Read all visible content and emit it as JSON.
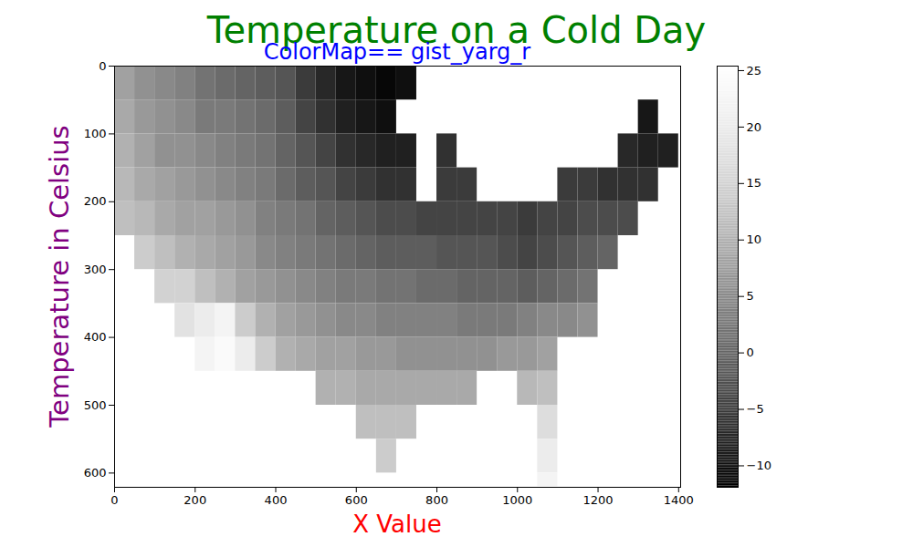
{
  "chart_data": {
    "type": "heatmap",
    "title": "Temperature on a Cold Day",
    "subtitle": "ColorMap== gist_yarg_r",
    "x_label": "X Value",
    "y_label": "Temperature in Celsius",
    "xlim": [
      0,
      1405
    ],
    "ylim": [
      621,
      0
    ],
    "xticks": [
      0,
      200,
      400,
      600,
      800,
      1000,
      1200,
      1400
    ],
    "yticks": [
      0,
      100,
      200,
      300,
      400,
      500,
      600
    ],
    "x_bins": [
      0,
      50,
      100,
      150,
      200,
      250,
      300,
      350,
      400,
      450,
      500,
      550,
      600,
      650,
      700,
      750,
      800,
      850,
      900,
      950,
      1000,
      1050,
      1100,
      1150,
      1200,
      1250,
      1300,
      1350,
      1400
    ],
    "y_bins": [
      0,
      50,
      100,
      150,
      200,
      250,
      300,
      350,
      400,
      450,
      500,
      550,
      600,
      620
    ],
    "cells": [
      [
        8,
        6,
        5,
        4,
        2,
        1,
        0,
        -1,
        -2,
        -5,
        -7,
        -9,
        -10,
        -11,
        -10,
        null,
        null,
        null,
        null,
        null,
        null,
        null,
        null,
        null,
        null,
        null,
        null,
        null
      ],
      [
        9,
        7,
        6,
        5,
        3,
        3,
        2,
        1,
        -1,
        -4,
        -6,
        -8,
        -9,
        -10,
        null,
        null,
        null,
        null,
        null,
        null,
        null,
        null,
        null,
        null,
        null,
        null,
        -9,
        null
      ],
      [
        10,
        8,
        6,
        6,
        5,
        4,
        3,
        2,
        0,
        -2,
        -4,
        -6,
        -7,
        -8,
        -8,
        null,
        -6,
        null,
        null,
        null,
        null,
        null,
        null,
        null,
        null,
        -7,
        -8,
        -8
      ],
      [
        11,
        9,
        8,
        7,
        6,
        5,
        4,
        3,
        1,
        -1,
        -2,
        -4,
        -5,
        -6,
        -6,
        null,
        -5,
        -5,
        null,
        null,
        null,
        null,
        -5,
        -5,
        -6,
        -6,
        -6,
        null
      ],
      [
        12,
        11,
        9,
        8,
        8,
        7,
        6,
        4,
        3,
        2,
        0,
        -1,
        -2,
        -3,
        -3,
        -4,
        -4,
        -4,
        -4,
        -4,
        -5,
        -4,
        -4,
        -3,
        -3,
        -3,
        null,
        null
      ],
      [
        null,
        14,
        12,
        10,
        9,
        8,
        7,
        5,
        4,
        3,
        2,
        1,
        0,
        -1,
        -1,
        -1,
        -2,
        -2,
        -2,
        -3,
        -4,
        -3,
        -2,
        -1,
        0,
        null,
        null,
        null
      ],
      [
        null,
        null,
        15,
        15,
        12,
        10,
        8,
        7,
        6,
        5,
        4,
        3,
        3,
        2,
        2,
        1,
        1,
        0,
        0,
        0,
        -1,
        0,
        1,
        2,
        null,
        null,
        null,
        null
      ],
      [
        null,
        null,
        null,
        18,
        20,
        22,
        14,
        10,
        8,
        7,
        6,
        5,
        5,
        4,
        4,
        4,
        4,
        3,
        3,
        3,
        4,
        5,
        5,
        6,
        null,
        null,
        null,
        null
      ],
      [
        null,
        null,
        null,
        null,
        22,
        24,
        20,
        14,
        10,
        9,
        8,
        8,
        7,
        7,
        6,
        6,
        6,
        6,
        6,
        7,
        7,
        8,
        null,
        null,
        null,
        null,
        null,
        null
      ],
      [
        null,
        null,
        null,
        null,
        null,
        null,
        null,
        null,
        null,
        null,
        10,
        10,
        9,
        9,
        9,
        9,
        9,
        9,
        null,
        null,
        11,
        12,
        null,
        null,
        null,
        null,
        null,
        null
      ],
      [
        null,
        null,
        null,
        null,
        null,
        null,
        null,
        null,
        null,
        null,
        null,
        null,
        12,
        12,
        12,
        null,
        null,
        null,
        null,
        null,
        null,
        17,
        null,
        null,
        null,
        null,
        null,
        null
      ],
      [
        null,
        null,
        null,
        null,
        null,
        null,
        null,
        null,
        null,
        null,
        null,
        null,
        null,
        14,
        null,
        null,
        null,
        null,
        null,
        null,
        null,
        20,
        null,
        null,
        null,
        null,
        null,
        null
      ],
      [
        null,
        null,
        null,
        null,
        null,
        null,
        null,
        null,
        null,
        null,
        null,
        null,
        null,
        null,
        null,
        null,
        null,
        null,
        null,
        null,
        null,
        22,
        null,
        null,
        null,
        null,
        null,
        null
      ]
    ],
    "colorbar": {
      "colormap": "gist_yarg_r",
      "range": [
        -11.9,
        25.4
      ],
      "ticks": [
        {
          "value": -10,
          "label": "−10"
        },
        {
          "value": -5,
          "label": "−5"
        },
        0,
        5,
        10,
        15,
        20,
        25
      ]
    }
  }
}
